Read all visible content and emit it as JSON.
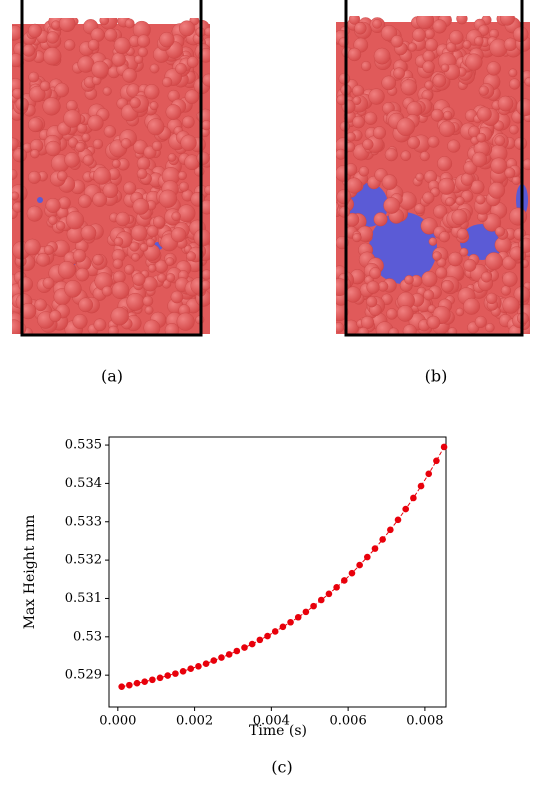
{
  "captions": {
    "a": "(a)",
    "b": "(b)",
    "c": "(c)"
  },
  "chart_data": {
    "type": "line",
    "x_label": "Time (s)",
    "y_label": "Max Height mm",
    "color": "#e8000b",
    "grid": false,
    "x": [
      0.0001,
      0.0003,
      0.0005,
      0.0007,
      0.0009,
      0.0011,
      0.0013,
      0.0015,
      0.0017,
      0.0019,
      0.0021,
      0.0023,
      0.0025,
      0.0027,
      0.0029,
      0.0031,
      0.0033,
      0.0035,
      0.0037,
      0.0039,
      0.0041,
      0.0043,
      0.0045,
      0.0047,
      0.0049,
      0.0051,
      0.0053,
      0.0055,
      0.0057,
      0.0059,
      0.0061,
      0.0063,
      0.0065,
      0.0067,
      0.0069,
      0.0071,
      0.0073,
      0.0075,
      0.0077,
      0.0079,
      0.0081,
      0.0083,
      0.0085
    ],
    "values": [
      0.5287,
      0.52874,
      0.52879,
      0.52883,
      0.52888,
      0.52893,
      0.52899,
      0.52904,
      0.5291,
      0.52917,
      0.52923,
      0.5293,
      0.52938,
      0.52946,
      0.52954,
      0.52963,
      0.52972,
      0.52981,
      0.52992,
      0.53002,
      0.53014,
      0.53026,
      0.53038,
      0.53051,
      0.53065,
      0.5308,
      0.53096,
      0.53112,
      0.53129,
      0.53147,
      0.53166,
      0.53187,
      0.53208,
      0.5323,
      0.53254,
      0.53279,
      0.53305,
      0.53333,
      0.53362,
      0.53393,
      0.53425,
      0.53459,
      0.53495
    ],
    "xlim": [
      -0.00023,
      0.00855
    ],
    "ylim": [
      0.52817,
      0.53521
    ],
    "xticks": [
      {
        "value": 0,
        "label": "0.000"
      },
      {
        "value": 0.002,
        "label": "0.002"
      },
      {
        "value": 0.004,
        "label": "0.004"
      },
      {
        "value": 0.006,
        "label": "0.006"
      },
      {
        "value": 0.008,
        "label": "0.008"
      }
    ],
    "yticks": [
      0.529,
      0.53,
      0.531,
      0.532,
      0.533,
      0.534,
      0.535
    ]
  }
}
